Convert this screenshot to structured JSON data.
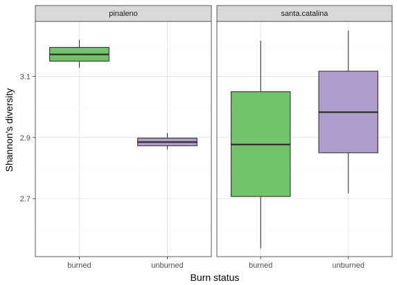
{
  "chart_data": {
    "type": "boxplot",
    "xlabel": "Burn status",
    "ylabel": "Shannon's diversity",
    "ylim": [
      2.51,
      3.28
    ],
    "y_ticks": [
      2.7,
      2.9,
      3.1
    ],
    "y_tick_labels": [
      "2.7",
      "2.9",
      "3.1"
    ],
    "categories": [
      "burned",
      "unburned"
    ],
    "grid": true,
    "fill_colors": {
      "burned": "#72c36a",
      "unburned": "#ae9ccb"
    },
    "panels": [
      {
        "name": "pinaleno",
        "boxes": [
          {
            "category": "burned",
            "min": 3.128,
            "q1": 3.15,
            "median": 3.172,
            "q3": 3.195,
            "max": 3.22
          },
          {
            "category": "unburned",
            "min": 2.86,
            "q1": 2.873,
            "median": 2.885,
            "q3": 2.898,
            "max": 2.915
          }
        ]
      },
      {
        "name": "santa.catalina",
        "boxes": [
          {
            "category": "burned",
            "min": 2.537,
            "q1": 2.707,
            "median": 2.877,
            "q3": 3.05,
            "max": 3.217
          },
          {
            "category": "unburned",
            "min": 2.717,
            "q1": 2.85,
            "median": 2.983,
            "q3": 3.117,
            "max": 3.25
          }
        ]
      }
    ]
  }
}
